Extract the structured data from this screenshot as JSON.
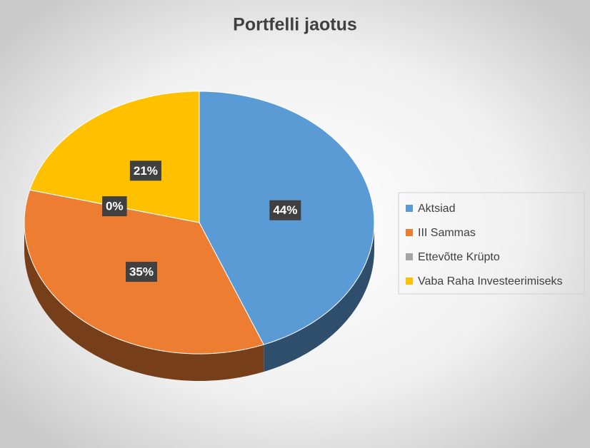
{
  "chart_data": {
    "type": "pie",
    "title": "Portfelli jaotus",
    "categories": [
      "Aktsiad",
      "III Sammas",
      "Ettevõtte Krüpto",
      "Vaba Raha Investeerimiseks"
    ],
    "values": [
      44,
      35,
      0,
      21
    ],
    "value_labels": [
      "44%",
      "35%",
      "0%",
      "21%"
    ],
    "colors": [
      "#5b9bd5",
      "#ed7d31",
      "#a5a5a5",
      "#ffc000"
    ],
    "legend": "right"
  }
}
